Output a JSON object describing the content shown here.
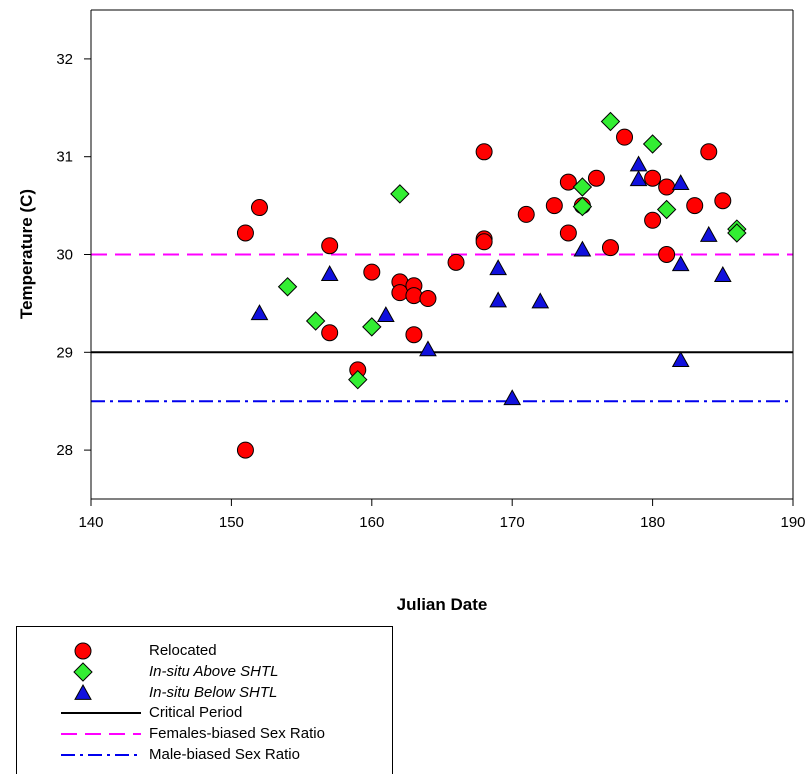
{
  "chart_data": {
    "type": "scatter",
    "xlabel": "Julian Date",
    "ylabel": "Temperature (C)",
    "xlim": [
      140,
      190
    ],
    "ylim": [
      27.5,
      32.5
    ],
    "xticks": [
      140,
      150,
      160,
      170,
      180,
      190
    ],
    "yticks": [
      28,
      29,
      30,
      31,
      32
    ],
    "grid": false,
    "legend_position": "bottom-left",
    "series": [
      {
        "name": "Relocated",
        "marker": "circle",
        "color": "#ff0000",
        "points": [
          [
            151,
            30.22
          ],
          [
            151,
            28.0
          ],
          [
            152,
            30.48
          ],
          [
            157,
            30.09
          ],
          [
            157,
            29.2
          ],
          [
            159,
            28.82
          ],
          [
            160,
            29.82
          ],
          [
            162,
            29.72
          ],
          [
            162,
            29.61
          ],
          [
            163,
            29.68
          ],
          [
            163,
            29.58
          ],
          [
            163,
            29.18
          ],
          [
            164,
            29.55
          ],
          [
            166,
            29.92
          ],
          [
            168,
            31.05
          ],
          [
            168,
            30.16
          ],
          [
            168,
            30.13
          ],
          [
            171,
            30.41
          ],
          [
            173,
            30.5
          ],
          [
            174,
            30.74
          ],
          [
            174,
            30.22
          ],
          [
            175,
            30.5
          ],
          [
            176,
            30.78
          ],
          [
            177,
            30.07
          ],
          [
            178,
            31.2
          ],
          [
            180,
            30.78
          ],
          [
            180,
            30.35
          ],
          [
            181,
            30.69
          ],
          [
            181,
            30.0
          ],
          [
            183,
            30.5
          ],
          [
            184,
            31.05
          ],
          [
            185,
            30.55
          ]
        ]
      },
      {
        "name": "In-situ Above SHTL",
        "marker": "diamond",
        "color": "#33ee33",
        "points": [
          [
            154,
            29.67
          ],
          [
            156,
            29.32
          ],
          [
            159,
            28.72
          ],
          [
            160,
            29.26
          ],
          [
            162,
            30.62
          ],
          [
            175,
            30.69
          ],
          [
            175,
            30.49
          ],
          [
            177,
            31.36
          ],
          [
            180,
            31.13
          ],
          [
            181,
            30.46
          ],
          [
            186,
            30.26
          ],
          [
            186,
            30.22
          ]
        ]
      },
      {
        "name": "In-situ Below SHTL",
        "marker": "triangle",
        "color": "#1111dd",
        "points": [
          [
            152,
            29.4
          ],
          [
            157,
            29.8
          ],
          [
            161,
            29.38
          ],
          [
            164,
            29.03
          ],
          [
            169,
            29.86
          ],
          [
            169,
            29.53
          ],
          [
            170,
            28.53
          ],
          [
            172,
            29.52
          ],
          [
            175,
            30.05
          ],
          [
            179,
            30.92
          ],
          [
            179,
            30.77
          ],
          [
            182,
            30.73
          ],
          [
            182,
            29.9
          ],
          [
            182,
            28.92
          ],
          [
            184,
            30.2
          ],
          [
            185,
            29.79
          ]
        ]
      }
    ],
    "reference_lines": [
      {
        "name": "Critical Period",
        "y": 29.0,
        "style": "solid",
        "color": "#000000"
      },
      {
        "name": "Females-biased Sex Ratio",
        "y": 30.0,
        "style": "dashed",
        "color": "#ff00ff"
      },
      {
        "name": "Male-biased Sex Ratio",
        "y": 28.5,
        "style": "dashdot",
        "color": "#0000ee"
      }
    ]
  },
  "legend": {
    "items": [
      {
        "label": "Relocated",
        "symbol": "circle",
        "italic": false
      },
      {
        "label": "In-situ Above SHTL",
        "symbol": "diamond",
        "italic": true
      },
      {
        "label": "In-situ Below SHTL",
        "symbol": "triangle",
        "italic": true
      },
      {
        "label": "Critical Period",
        "symbol": "solid-line",
        "italic": false
      },
      {
        "label": "Females-biased Sex Ratio",
        "symbol": "dashed-line",
        "italic": false
      },
      {
        "label": "Male-biased Sex Ratio",
        "symbol": "dashdot-line",
        "italic": false
      }
    ]
  }
}
